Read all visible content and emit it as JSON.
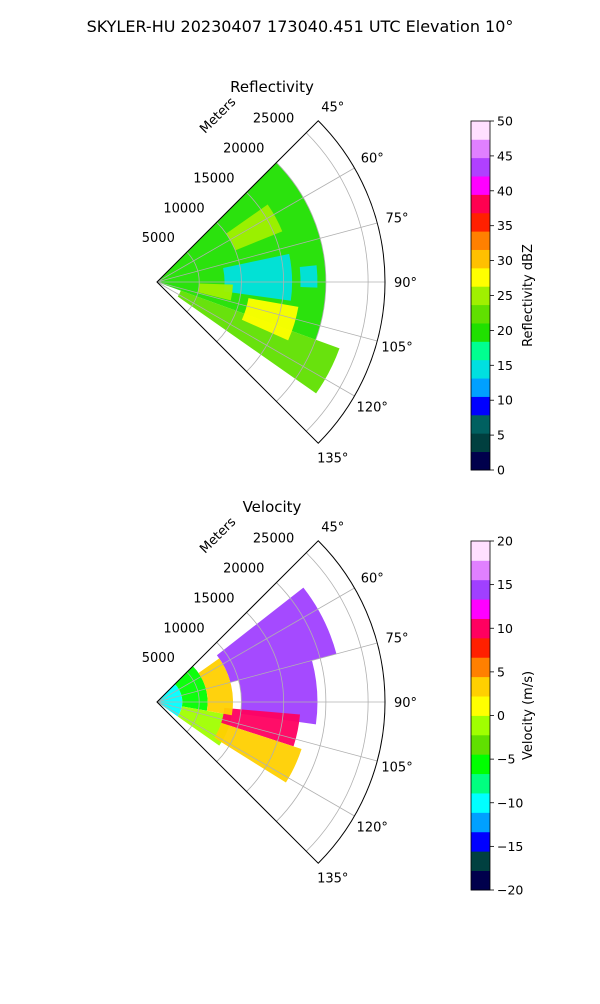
{
  "figure": {
    "suptitle": "SKYLER-HU  20230407  173040.451 UTC Elevation 10°"
  },
  "chart_data": [
    {
      "type": "heatmap",
      "projection": "polar-sector",
      "title": "Reflectivity",
      "radial_axis_label": "Meters",
      "radial_ticks": [
        5000,
        10000,
        15000,
        20000,
        25000
      ],
      "radial_tick_labels": [
        "5000",
        "10000",
        "15000",
        "20000",
        "25000"
      ],
      "theta_ticks": [
        45,
        60,
        75,
        90,
        105,
        120,
        135
      ],
      "theta_tick_labels": [
        "45°",
        "60°",
        "75°",
        "90°",
        "105°",
        "120°",
        "135°"
      ],
      "theta_range_deg": [
        45,
        135
      ],
      "range_max_m": 27000,
      "grid": true,
      "colorbar": {
        "label": "Reflectivity dBZ",
        "range": [
          0,
          50
        ],
        "ticks": [
          0,
          5,
          10,
          15,
          20,
          25,
          30,
          35,
          40,
          45,
          50
        ],
        "tick_labels": [
          "0",
          "5",
          "10",
          "15",
          "20",
          "25",
          "30",
          "35",
          "40",
          "45",
          "50"
        ]
      },
      "field_regions": [
        {
          "theta": [
            45,
            110
          ],
          "r": [
            0,
            20000
          ],
          "value": 20
        },
        {
          "theta": [
            110,
            125
          ],
          "r": [
            3000,
            23000
          ],
          "value": 22
        },
        {
          "theta": [
            78,
            98
          ],
          "r": [
            8000,
            16000
          ],
          "value": 14
        },
        {
          "theta": [
            84,
            92
          ],
          "r": [
            17000,
            19000
          ],
          "value": 15
        },
        {
          "theta": [
            55,
            68
          ],
          "r": [
            10000,
            16000
          ],
          "value": 26
        },
        {
          "theta": [
            100,
            114
          ],
          "r": [
            11000,
            17000
          ],
          "value": 27
        },
        {
          "theta": [
            92,
            104
          ],
          "r": [
            5000,
            9000
          ],
          "value": 26
        }
      ]
    },
    {
      "type": "heatmap",
      "projection": "polar-sector",
      "title": "Velocity",
      "radial_axis_label": "Meters",
      "radial_ticks": [
        5000,
        10000,
        15000,
        20000,
        25000
      ],
      "radial_tick_labels": [
        "5000",
        "10000",
        "15000",
        "20000",
        "25000"
      ],
      "theta_ticks": [
        45,
        60,
        75,
        90,
        105,
        120,
        135
      ],
      "theta_tick_labels": [
        "45°",
        "60°",
        "75°",
        "90°",
        "105°",
        "120°",
        "135°"
      ],
      "theta_range_deg": [
        45,
        135
      ],
      "range_max_m": 27000,
      "grid": true,
      "colorbar": {
        "label": "Velocity (m/s)",
        "range": [
          -20,
          20
        ],
        "ticks": [
          -20,
          -15,
          -10,
          -5,
          0,
          5,
          10,
          15,
          20
        ],
        "tick_labels": [
          "−20",
          "−15",
          "−10",
          "−5",
          "0",
          "5",
          "10",
          "15",
          "20"
        ]
      },
      "field_regions": [
        {
          "theta": [
            45,
            125
          ],
          "r": [
            0,
            3000
          ],
          "value": -11
        },
        {
          "theta": [
            45,
            100
          ],
          "r": [
            3000,
            6000
          ],
          "value": -5
        },
        {
          "theta": [
            100,
            125
          ],
          "r": [
            3000,
            9000
          ],
          "value": -2
        },
        {
          "theta": [
            52,
            75
          ],
          "r": [
            9000,
            22000
          ],
          "value": 15
        },
        {
          "theta": [
            75,
            98
          ],
          "r": [
            10000,
            19000
          ],
          "value": 14
        },
        {
          "theta": [
            95,
            108
          ],
          "r": [
            8000,
            17000
          ],
          "value": 10
        },
        {
          "theta": [
            108,
            122
          ],
          "r": [
            8000,
            18000
          ],
          "value": 3
        },
        {
          "theta": [
            55,
            100
          ],
          "r": [
            6000,
            9000
          ],
          "value": 4
        }
      ]
    }
  ],
  "colors": {
    "grid": "#b0b0b0",
    "frame": "#000000",
    "reflectivity_stops": [
      "#00004c",
      "#003f3f",
      "#006060",
      "#0000ff",
      "#00a0ff",
      "#00e0e0",
      "#00ff90",
      "#20e000",
      "#60e000",
      "#a0f000",
      "#ffff00",
      "#ffc000",
      "#ff8000",
      "#ff2000",
      "#ff0050",
      "#ff00ff",
      "#b040ff",
      "#e080ff",
      "#ffe0ff"
    ],
    "velocity_stops": [
      "#00004c",
      "#004040",
      "#0000ff",
      "#00a0ff",
      "#00ffff",
      "#00ff80",
      "#00ff00",
      "#60e000",
      "#a0ff00",
      "#ffff00",
      "#ffd000",
      "#ff8000",
      "#ff2000",
      "#ff0060",
      "#ff00ff",
      "#a040ff",
      "#e080ff",
      "#ffe0ff"
    ]
  }
}
